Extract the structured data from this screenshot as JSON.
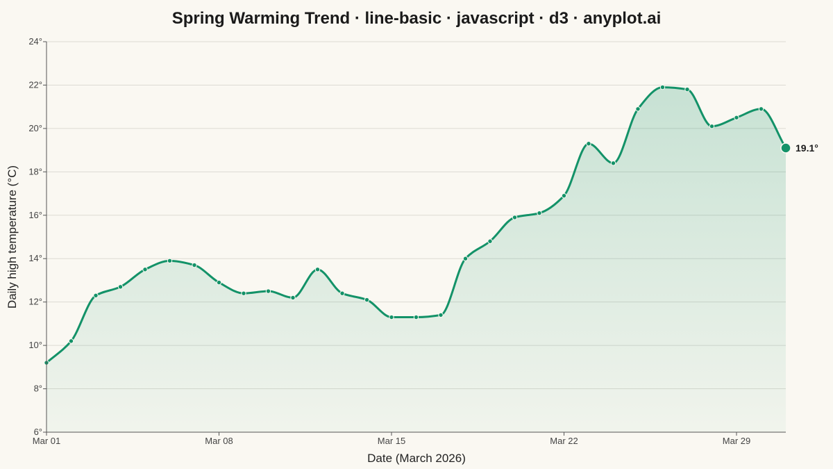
{
  "chart_data": {
    "type": "area",
    "title": "Spring Warming Trend · line-basic · javascript · d3 · anyplot.ai",
    "xlabel": "Date (March 2026)",
    "ylabel": "Daily high temperature (°C)",
    "ylim": [
      6,
      24
    ],
    "y_ticks": [
      6,
      8,
      10,
      12,
      14,
      16,
      18,
      20,
      22,
      24
    ],
    "y_tick_suffix": "°",
    "x_ticks": [
      {
        "day": 1,
        "label": "Mar 01"
      },
      {
        "day": 8,
        "label": "Mar 08"
      },
      {
        "day": 15,
        "label": "Mar 15"
      },
      {
        "day": 22,
        "label": "Mar 22"
      },
      {
        "day": 29,
        "label": "Mar 29"
      }
    ],
    "xlim": [
      1,
      31
    ],
    "grid": true,
    "color": "#139268",
    "series": [
      {
        "x": [
          "2026-03-01",
          "2026-03-02",
          "2026-03-03",
          "2026-03-04",
          "2026-03-05",
          "2026-03-06",
          "2026-03-07",
          "2026-03-08",
          "2026-03-09",
          "2026-03-10",
          "2026-03-11",
          "2026-03-12",
          "2026-03-13",
          "2026-03-14",
          "2026-03-15",
          "2026-03-16",
          "2026-03-17",
          "2026-03-18",
          "2026-03-19",
          "2026-03-20",
          "2026-03-21",
          "2026-03-22",
          "2026-03-23",
          "2026-03-24",
          "2026-03-25",
          "2026-03-26",
          "2026-03-27",
          "2026-03-28",
          "2026-03-29",
          "2026-03-30",
          "2026-03-31"
        ],
        "values": [
          9.2,
          10.2,
          12.3,
          12.7,
          13.5,
          13.9,
          13.7,
          12.9,
          12.4,
          12.5,
          12.2,
          13.5,
          12.4,
          12.1,
          11.3,
          11.3,
          11.4,
          14.0,
          14.8,
          15.9,
          16.1,
          16.9,
          19.3,
          18.4,
          20.9,
          21.9,
          21.8,
          20.1,
          20.5,
          20.9,
          19.1
        ]
      }
    ],
    "end_label": "19.1°"
  }
}
